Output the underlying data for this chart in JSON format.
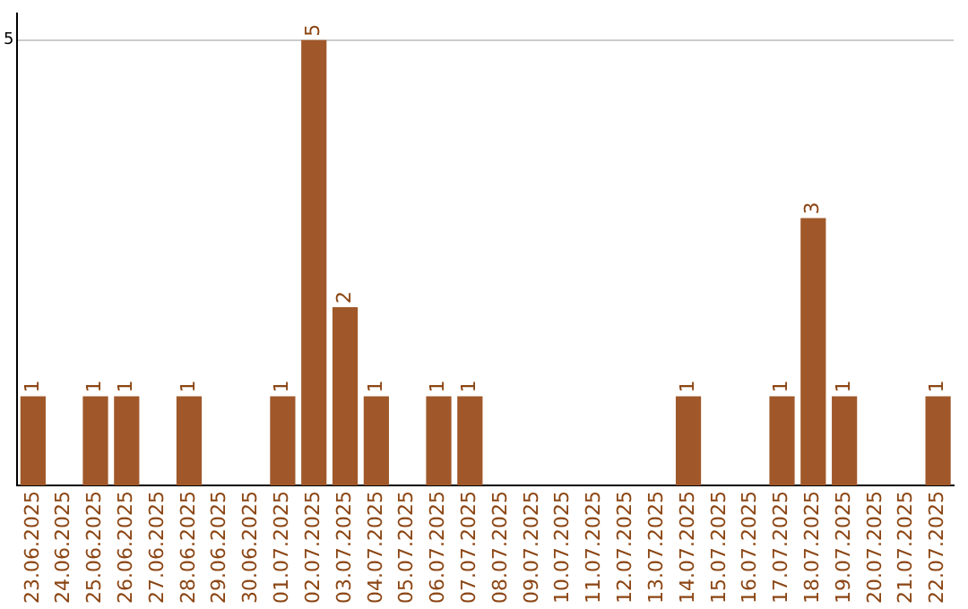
{
  "chart_data": {
    "type": "bar",
    "categories": [
      "23.06.2025",
      "24.06.2025",
      "25.06.2025",
      "26.06.2025",
      "27.06.2025",
      "28.06.2025",
      "29.06.2025",
      "30.06.2025",
      "01.07.2025",
      "02.07.2025",
      "03.07.2025",
      "04.07.2025",
      "05.07.2025",
      "06.07.2025",
      "07.07.2025",
      "08.07.2025",
      "09.07.2025",
      "10.07.2025",
      "11.07.2025",
      "12.07.2025",
      "13.07.2025",
      "14.07.2025",
      "15.07.2025",
      "16.07.2025",
      "17.07.2025",
      "18.07.2025",
      "19.07.2025",
      "20.07.2025",
      "21.07.2025",
      "22.07.2025"
    ],
    "values": [
      1,
      0,
      1,
      1,
      0,
      1,
      0,
      0,
      1,
      5,
      2,
      1,
      0,
      1,
      1,
      0,
      0,
      0,
      0,
      0,
      0,
      1,
      0,
      0,
      1,
      3,
      1,
      0,
      0,
      1
    ],
    "value_labels": [
      "1",
      null,
      "1",
      "1",
      null,
      "1",
      null,
      null,
      "1",
      "5",
      "2",
      "1",
      null,
      "1",
      "1",
      null,
      null,
      null,
      null,
      null,
      null,
      "1",
      null,
      null,
      "1",
      "3",
      "1",
      null,
      null,
      "1"
    ],
    "color": "#a0582a",
    "ylim": [
      0,
      5.3
    ],
    "yticks": [
      5
    ],
    "grid": "y",
    "legend": false
  }
}
